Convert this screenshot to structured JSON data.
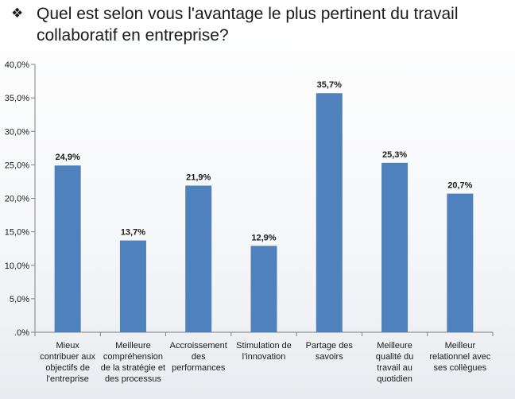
{
  "slide": {
    "bullet_icon": "diamond-bullet-icon",
    "title": "Quel est selon vous l'avantage le plus pertinent du travail collaboratif en entreprise?"
  },
  "chart_data": {
    "type": "bar",
    "title": "",
    "xlabel": "",
    "ylabel": "",
    "ylim": [
      0,
      40
    ],
    "y_ticks": [
      ".0%",
      "5,0%",
      "10,0%",
      "15,0%",
      "20,0%",
      "25,0%",
      "30,0%",
      "35,0%",
      "40,0%"
    ],
    "y_tick_values": [
      0,
      5,
      10,
      15,
      20,
      25,
      30,
      35,
      40
    ],
    "grid": false,
    "categories": [
      [
        "Mieux",
        "contribuer aux",
        "objectifs de",
        "l'entreprise"
      ],
      [
        "Meilleure",
        "compréhension",
        "de la stratégie et",
        "des processus"
      ],
      [
        "Accroissement",
        "des",
        "performances"
      ],
      [
        "Stimulation de",
        "l'innovation"
      ],
      [
        "Partage des",
        "savoirs"
      ],
      [
        "Meilleure",
        "qualité du",
        "travail au",
        "quotidien"
      ],
      [
        "Meilleur",
        "relationnel avec",
        "ses collègues"
      ]
    ],
    "values": [
      24.9,
      13.7,
      21.9,
      12.9,
      35.7,
      25.3,
      20.7
    ],
    "data_labels": [
      "24,9%",
      "13,7%",
      "21,9%",
      "12,9%",
      "35,7%",
      "25,3%",
      "20,7%"
    ],
    "bar_color": "#4f81bd"
  }
}
